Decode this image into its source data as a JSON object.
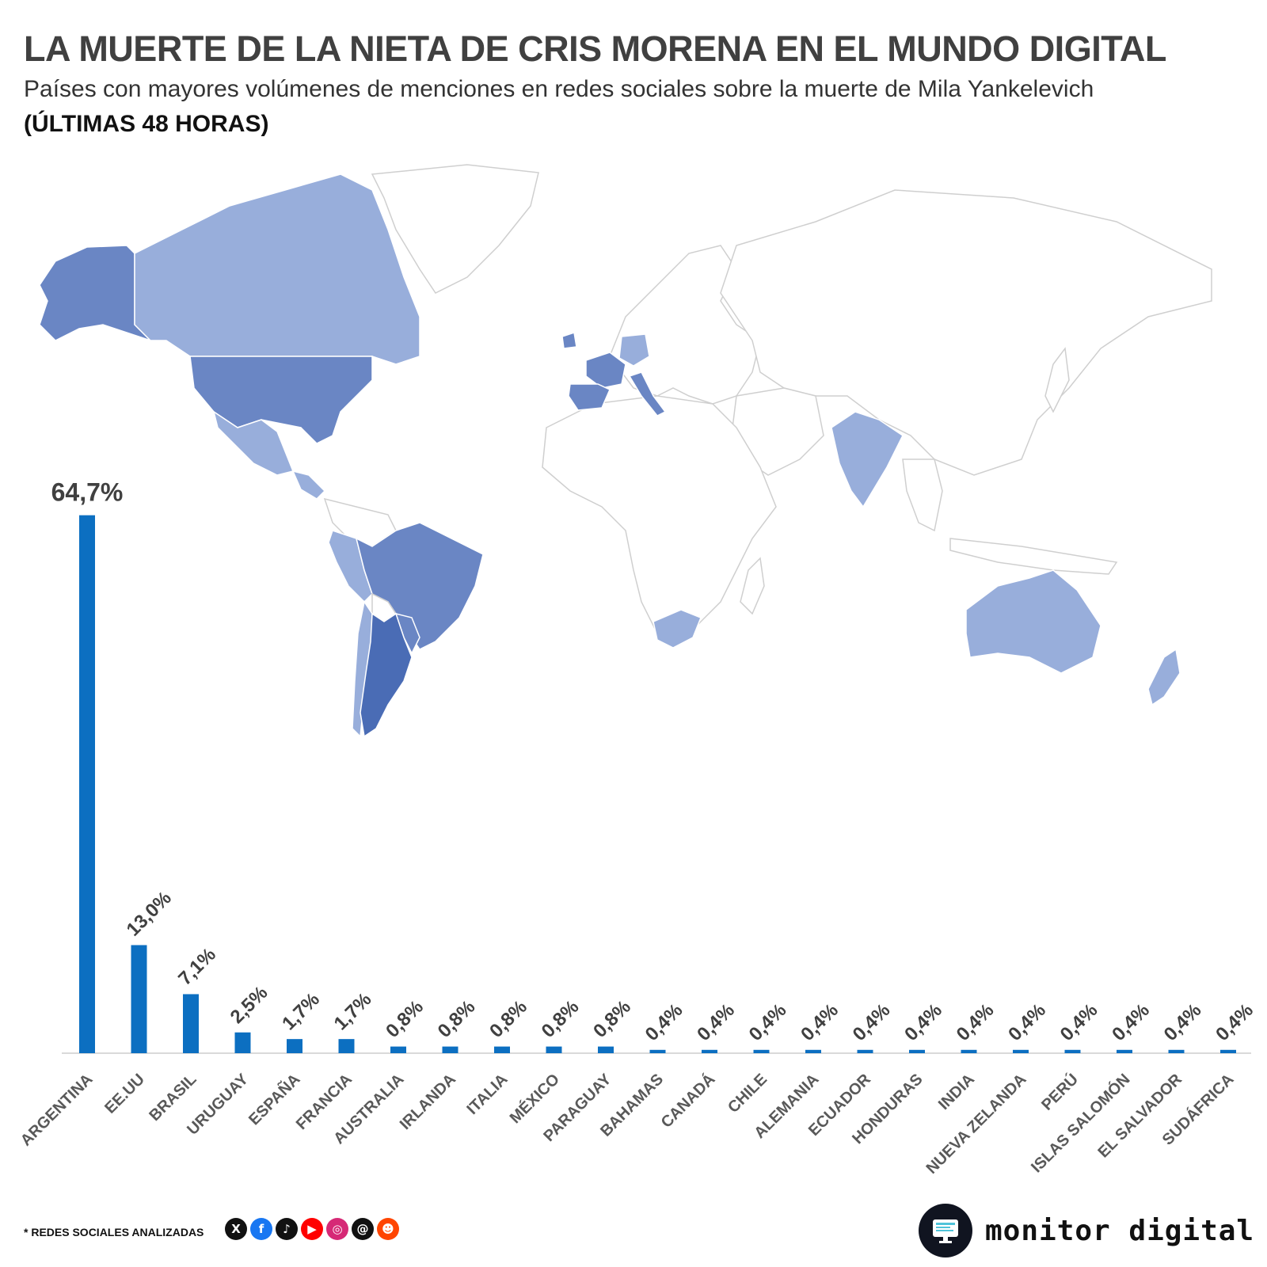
{
  "header": {
    "title": "LA MUERTE DE LA NIETA DE CRIS MORENA EN EL MUNDO DIGITAL",
    "subtitle": "Países con mayores volúmenes de menciones en redes sociales sobre la muerte de Mila Yankelevich",
    "period": "(ÚLTIMAS 48 HORAS)"
  },
  "map": {
    "description_colors": {
      "highest": "#4a6cb5",
      "high": "#6a86c4",
      "medium": "#98aedb",
      "none": "#ffffff",
      "border": "#d0d0d0"
    }
  },
  "chart_data": {
    "type": "bar",
    "title": "",
    "xlabel": "",
    "ylabel": "",
    "ylim": [
      0,
      70
    ],
    "grid": false,
    "bar_color": "#0c6fc1",
    "categories": [
      "ARGENTINA",
      "EE.UU",
      "BRASIL",
      "URUGUAY",
      "ESPAÑA",
      "FRANCIA",
      "AUSTRALIA",
      "IRLANDA",
      "ITALIA",
      "MÉXICO",
      "PARAGUAY",
      "BAHAMAS",
      "CANADÁ",
      "CHILE",
      "ALEMANIA",
      "ECUADOR",
      "HONDURAS",
      "INDIA",
      "NUEVA ZELANDA",
      "PERÚ",
      "ISLAS SALOMÓN",
      "EL SALVADOR",
      "SUDÁFRICA"
    ],
    "values": [
      64.7,
      13.0,
      7.1,
      2.5,
      1.7,
      1.7,
      0.8,
      0.8,
      0.8,
      0.8,
      0.8,
      0.4,
      0.4,
      0.4,
      0.4,
      0.4,
      0.4,
      0.4,
      0.4,
      0.4,
      0.4,
      0.4,
      0.4
    ],
    "value_labels": [
      "64,7%",
      "13,0%",
      "7,1%",
      "2,5%",
      "1,7%",
      "1,7%",
      "0,8%",
      "0,8%",
      "0,8%",
      "0,8%",
      "0,8%",
      "0,4%",
      "0,4%",
      "0,4%",
      "0,4%",
      "0,4%",
      "0,4%",
      "0,4%",
      "0,4%",
      "0,4%",
      "0,4%",
      "0,4%",
      "0,4%"
    ]
  },
  "footer": {
    "note": "* REDES SOCIALES ANALIZADAS",
    "networks": [
      "X",
      "f",
      "♪",
      "▶",
      "◎",
      "@",
      "☻"
    ],
    "network_colors": [
      "#111111",
      "#1877f2",
      "#111111",
      "#ff0000",
      "#d62976",
      "#111111",
      "#ff4500"
    ],
    "brand": "monitor digital"
  }
}
